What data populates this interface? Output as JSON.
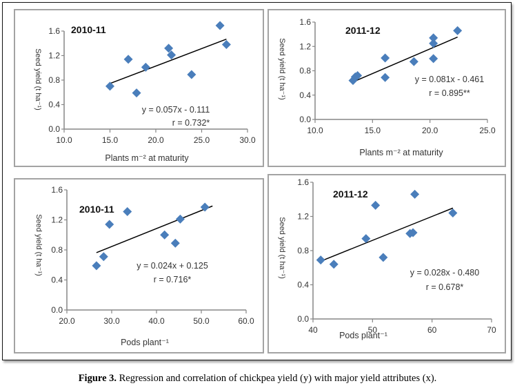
{
  "figure": {
    "caption_label": "Figure 3.",
    "caption_text": " Regression and correlation of chickpea yield (y) with major yield attributes (x).",
    "marker_color": "#4a7ebb",
    "trend_color": "#000000",
    "axis_color": "#868686"
  },
  "chart_data": [
    {
      "type": "scatter",
      "title": "2010-11",
      "xlabel": "Plants m⁻² at maturity",
      "ylabel": "Seed yield (t ha⁻¹)",
      "ylabel_rendered": "Seed yield (t ha-1)",
      "xlim": [
        10,
        30
      ],
      "ylim": [
        0,
        1.6
      ],
      "xticks": [
        10,
        15,
        20,
        25,
        30
      ],
      "xtick_labels": [
        "10.0",
        "15.0",
        "20.0",
        "25.0",
        "30.0"
      ],
      "yticks": [
        0,
        0.4,
        0.8,
        1.2,
        1.6
      ],
      "ytick_labels": [
        "0.0",
        "0.4",
        "0.8",
        "1.2",
        "1.6"
      ],
      "points": [
        [
          15.0,
          0.7
        ],
        [
          17.0,
          1.14
        ],
        [
          17.9,
          0.59
        ],
        [
          18.9,
          1.01
        ],
        [
          21.4,
          1.32
        ],
        [
          21.7,
          1.21
        ],
        [
          23.9,
          0.89
        ],
        [
          27.0,
          1.69
        ],
        [
          27.7,
          1.38
        ]
      ],
      "trendline": {
        "slope": 0.057,
        "intercept": -0.111,
        "x_range": [
          15.0,
          27.7
        ]
      },
      "equation": "y = 0.057x - 0.111",
      "r_label": "r = 0.732*"
    },
    {
      "type": "scatter",
      "title": "2011-12",
      "xlabel": "Plants m⁻² at maturity",
      "ylabel": "Seed yield (t ha⁻¹)",
      "xlim": [
        10,
        25
      ],
      "ylim": [
        0,
        1.6
      ],
      "xticks": [
        10,
        15,
        20,
        25
      ],
      "xtick_labels": [
        "10.0",
        "15.0",
        "20.0",
        "25.0"
      ],
      "yticks": [
        0,
        0.4,
        0.8,
        1.2,
        1.6
      ],
      "ytick_labels": [
        "0.0",
        "0.4",
        "0.8",
        "1.2",
        "1.6"
      ],
      "points": [
        [
          13.3,
          0.64
        ],
        [
          13.5,
          0.7
        ],
        [
          13.7,
          0.72
        ],
        [
          16.1,
          1.01
        ],
        [
          16.1,
          0.69
        ],
        [
          18.6,
          0.95
        ],
        [
          20.3,
          1.34
        ],
        [
          20.3,
          1.25
        ],
        [
          20.3,
          1.0
        ],
        [
          22.4,
          1.46
        ]
      ],
      "trendline": {
        "slope": 0.081,
        "intercept": -0.461,
        "x_range": [
          13.3,
          22.4
        ]
      },
      "equation": "y = 0.081x - 0.461",
      "r_label": "r =  0.895**"
    },
    {
      "type": "scatter",
      "title": "2010-11",
      "xlabel": "Pods plant⁻¹",
      "ylabel": "Seed yield (t ha⁻¹)",
      "xlim": [
        20,
        60
      ],
      "ylim": [
        0,
        1.6
      ],
      "xticks": [
        20,
        30,
        40,
        50,
        60
      ],
      "xtick_labels": [
        "20.0",
        "30.0",
        "40.0",
        "50.0",
        "60.0"
      ],
      "yticks": [
        0,
        0.4,
        0.8,
        1.2,
        1.6
      ],
      "ytick_labels": [
        "0.0",
        "0.4",
        "0.8",
        "1.2",
        "1.6"
      ],
      "points": [
        [
          26.6,
          0.59
        ],
        [
          28.2,
          0.71
        ],
        [
          29.5,
          1.14
        ],
        [
          33.5,
          1.31
        ],
        [
          41.8,
          1.0
        ],
        [
          44.2,
          0.89
        ],
        [
          45.3,
          1.21
        ],
        [
          50.8,
          1.37
        ]
      ],
      "trendline": {
        "slope": 0.024,
        "intercept": 0.125,
        "x_range": [
          26.6,
          52.5
        ]
      },
      "equation": "y = 0.024x + 0.125",
      "r_label": "r = 0.716*"
    },
    {
      "type": "scatter",
      "title": "2011-12",
      "xlabel": "Pods plant⁻¹",
      "ylabel": "Seed yield (t ha⁻¹)",
      "xlim": [
        40,
        70
      ],
      "ylim": [
        0,
        1.6
      ],
      "xticks": [
        40,
        50,
        60,
        70
      ],
      "xtick_labels": [
        "40",
        "50",
        "60",
        "70"
      ],
      "yticks": [
        0,
        0.4,
        0.8,
        1.2,
        1.6
      ],
      "ytick_labels": [
        "0.0",
        "0.4",
        "0.8",
        "1.2",
        "1.6"
      ],
      "points": [
        [
          41.3,
          0.69
        ],
        [
          43.5,
          0.64
        ],
        [
          48.9,
          0.94
        ],
        [
          50.5,
          1.33
        ],
        [
          51.8,
          0.72
        ],
        [
          56.3,
          1.0
        ],
        [
          56.8,
          1.01
        ],
        [
          57.1,
          1.46
        ],
        [
          63.5,
          1.24
        ]
      ],
      "trendline": {
        "slope": 0.028,
        "intercept": -0.48,
        "x_range": [
          41.3,
          63.5
        ]
      },
      "equation": "y = 0.028x - 0.480",
      "r_label": "r = 0.678*"
    }
  ]
}
